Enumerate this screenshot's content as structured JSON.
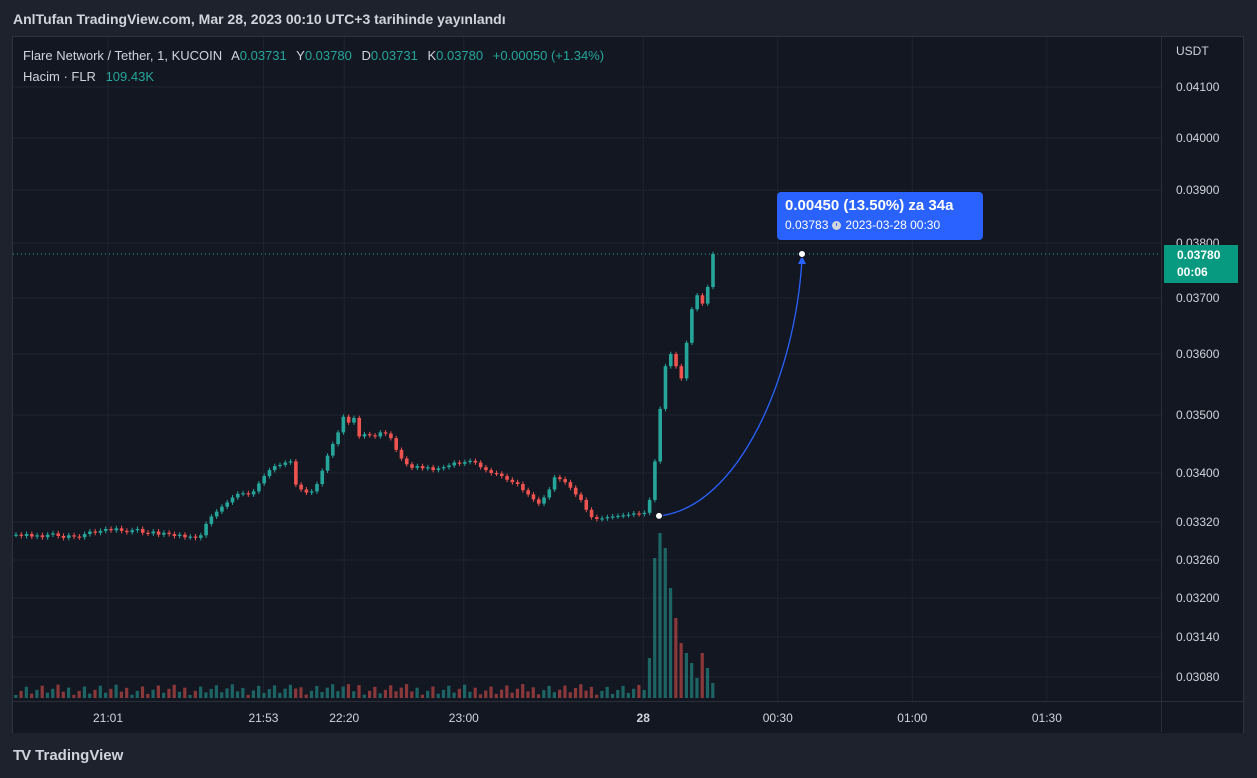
{
  "header": {
    "published": "AnlTufan TradingView.com, Mar 28, 2023 00:10 UTC+3 tarihinde yayınlandı"
  },
  "legend": {
    "symbol": "Flare Network / Tether, 1, KUCOIN",
    "open_label": "A",
    "open": "0.03731",
    "high_label": "Y",
    "high": "0.03780",
    "low_label": "D",
    "low": "0.03731",
    "close_label": "K",
    "close": "0.03780",
    "change": "+0.00050 (+1.34%)",
    "volume_label": "Hacim · FLR",
    "volume_value": "109.43K"
  },
  "price_axis": {
    "currency": "USDT",
    "current_price": "0.03780",
    "countdown": "00:06"
  },
  "measure": {
    "main": "0.00450 (13.50%) za 34a",
    "price": "0.03783",
    "datetime": "2023-03-28  00:30"
  },
  "brand": {
    "logo": "TV",
    "name": "TradingView"
  },
  "colors": {
    "up": "#26a69a",
    "down": "#ef5350",
    "background": "#131722",
    "accent": "#2962ff"
  },
  "chart_data": {
    "type": "candlestick",
    "title": "Flare Network / Tether, 1, KUCOIN",
    "x_ticks": [
      {
        "label": "21:01",
        "bold": false,
        "t": 0.0
      },
      {
        "label": "21:53",
        "bold": false,
        "t": 52.0
      },
      {
        "label": "22:20",
        "bold": false,
        "t": 79.0
      },
      {
        "label": "23:00",
        "bold": false,
        "t": 119.0
      },
      {
        "label": "28",
        "bold": true,
        "t": 179.0
      },
      {
        "label": "00:30",
        "bold": false,
        "t": 224.0
      },
      {
        "label": "01:00",
        "bold": false,
        "t": 269.0
      },
      {
        "label": "01:30",
        "bold": false,
        "t": 314.0
      }
    ],
    "y_ticks": [
      "0.04100",
      "0.04000",
      "0.03900",
      "0.03800",
      "0.03700",
      "0.03600",
      "0.03500",
      "0.03400",
      "0.03320",
      "0.03260",
      "0.03200",
      "0.03140",
      "0.03080"
    ],
    "candles_close": [
      0.033,
      0.03298,
      0.03301,
      0.03297,
      0.03299,
      0.03296,
      0.033,
      0.03302,
      0.03298,
      0.03295,
      0.03299,
      0.03297,
      0.03296,
      0.03301,
      0.03305,
      0.03303,
      0.03306,
      0.03309,
      0.03307,
      0.0331,
      0.03306,
      0.03304,
      0.03307,
      0.03309,
      0.03303,
      0.03302,
      0.03305,
      0.033,
      0.03303,
      0.03301,
      0.03298,
      0.033,
      0.03296,
      0.03297,
      0.03295,
      0.03299,
      0.03317,
      0.03329,
      0.03337,
      0.03345,
      0.03352,
      0.0336,
      0.03366,
      0.03367,
      0.03365,
      0.0337,
      0.03383,
      0.03395,
      0.03405,
      0.03412,
      0.03414,
      0.03418,
      0.0342,
      0.03381,
      0.03373,
      0.03368,
      0.0337,
      0.03382,
      0.03404,
      0.0343,
      0.0345,
      0.0347,
      0.03497,
      0.03487,
      0.03495,
      0.03463,
      0.03467,
      0.03465,
      0.03463,
      0.0347,
      0.03468,
      0.0346,
      0.0344,
      0.03425,
      0.03415,
      0.03409,
      0.03412,
      0.03408,
      0.0341,
      0.03405,
      0.03408,
      0.0341,
      0.03413,
      0.03418,
      0.03416,
      0.03419,
      0.03421,
      0.03418,
      0.0341,
      0.03405,
      0.034,
      0.03399,
      0.03395,
      0.03389,
      0.03385,
      0.03382,
      0.03372,
      0.03365,
      0.03357,
      0.0335,
      0.0336,
      0.03373,
      0.03393,
      0.0339,
      0.03385,
      0.03376,
      0.03365,
      0.03356,
      0.0334,
      0.03328,
      0.03325,
      0.03326,
      0.03328,
      0.03329,
      0.0333,
      0.03331,
      0.03332,
      0.03334,
      0.03333,
      0.03335,
      0.03356,
      0.0342,
      0.0351,
      0.0358,
      0.036,
      0.0358,
      0.0356,
      0.0362,
      0.0368,
      0.03705,
      0.0369,
      0.0372,
      0.0378
    ],
    "volume_bars": "approximate volume histogram; spike near 28 open",
    "measure_start_price": 0.0333,
    "measure_end_price": 0.0378,
    "current_price": 0.0378
  }
}
